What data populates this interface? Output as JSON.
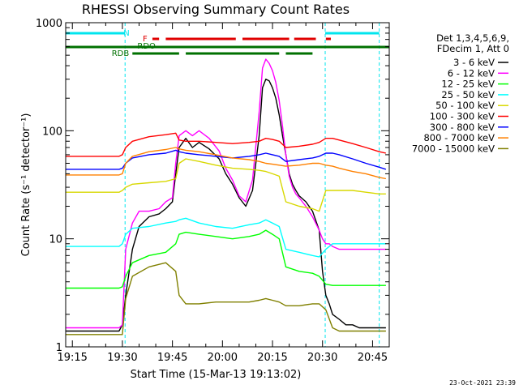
{
  "chart_data": {
    "type": "line",
    "title": "RHESSI Observing Summary Count Rates",
    "xlabel": "Start Time (15-Mar-13 19:13:02)",
    "ylabel": "Count Rate (s⁻¹ detector⁻¹)",
    "x_unit": "minutes after 19:13:02",
    "xlim": [
      0,
      97
    ],
    "ylim": [
      1,
      1000
    ],
    "yscale": "log",
    "x_ticks": [
      {
        "label": "19:15",
        "value": 2
      },
      {
        "label": "19:30",
        "value": 17
      },
      {
        "label": "19:45",
        "value": 32
      },
      {
        "label": "20:00",
        "value": 47
      },
      {
        "label": "20:15",
        "value": 62
      },
      {
        "label": "20:30",
        "value": 77
      },
      {
        "label": "20:45",
        "value": 92
      }
    ],
    "y_ticks": [
      {
        "label": "1",
        "value": 1
      },
      {
        "label": "10",
        "value": 10
      },
      {
        "label": "100",
        "value": 100
      },
      {
        "label": "1000",
        "value": 1000
      }
    ],
    "legend_header": [
      "Det 1,3,4,5,6,9,",
      "FDecim 1, Att 0"
    ],
    "legend_position": "right",
    "footer": "23-Oct-2021 23:39",
    "night_intervals": [
      {
        "start": 0,
        "end": 17.8
      },
      {
        "start": 77.8,
        "end": 94
      }
    ],
    "flags": [
      {
        "label": "N",
        "color": "#00e5ee",
        "segments": [
          [
            0,
            17.8
          ],
          [
            77.8,
            94
          ]
        ]
      },
      {
        "label": "F",
        "color": "#e00000",
        "segments": [
          [
            26,
            28
          ],
          [
            30,
            51
          ],
          [
            53,
            67
          ],
          [
            68.5,
            75
          ],
          [
            78,
            79.5
          ]
        ]
      },
      {
        "label": "RDO",
        "color": "#007000",
        "segments": [
          [
            0,
            97
          ]
        ]
      },
      {
        "label": "RDB",
        "color": "#007000",
        "segments": [
          [
            20,
            34
          ],
          [
            36,
            64
          ],
          [
            66,
            74
          ]
        ]
      }
    ],
    "series": [
      {
        "name": "3 - 6 keV",
        "color": "#000000",
        "x": [
          0,
          16,
          17,
          18,
          20,
          22,
          25,
          28,
          30,
          32,
          33,
          34,
          36,
          38,
          40,
          43,
          46,
          48,
          50,
          52,
          54,
          56,
          58,
          59,
          60,
          61,
          62,
          63,
          64,
          65,
          66,
          67,
          68,
          69,
          70,
          72,
          74,
          76,
          77,
          78,
          79,
          80,
          82,
          84,
          86,
          88,
          90,
          92,
          94,
          96
        ],
        "values": [
          1.4,
          1.4,
          1.6,
          3,
          8,
          13,
          16,
          17,
          19,
          22,
          40,
          70,
          85,
          70,
          78,
          68,
          55,
          40,
          32,
          24,
          20,
          28,
          90,
          250,
          300,
          290,
          250,
          200,
          140,
          90,
          60,
          40,
          32,
          28,
          25,
          22,
          18,
          12,
          5,
          3,
          2.5,
          2,
          1.8,
          1.6,
          1.6,
          1.5,
          1.5,
          1.5,
          1.5,
          1.5
        ]
      },
      {
        "name": "6 - 12 keV",
        "color": "#ff00ff",
        "x": [
          0,
          16,
          17,
          18,
          20,
          22,
          25,
          28,
          30,
          32,
          33,
          34,
          36,
          38,
          40,
          43,
          46,
          48,
          50,
          52,
          54,
          56,
          58,
          59,
          60,
          61,
          62,
          63,
          64,
          65,
          66,
          67,
          68,
          69,
          70,
          72,
          74,
          76,
          77,
          78,
          79,
          80,
          82,
          84,
          86,
          88,
          90,
          92,
          94,
          96
        ],
        "values": [
          1.5,
          1.5,
          1.6,
          8,
          14,
          18,
          18,
          19,
          22,
          24,
          50,
          90,
          100,
          90,
          100,
          85,
          65,
          45,
          35,
          25,
          22,
          35,
          150,
          380,
          460,
          420,
          360,
          280,
          190,
          110,
          60,
          38,
          30,
          26,
          24,
          20,
          16,
          12,
          10,
          9,
          9,
          8.5,
          8,
          8,
          8,
          8,
          8,
          8,
          8,
          8
        ]
      },
      {
        "name": "12 - 25 keV",
        "color": "#00ff00",
        "x": [
          0,
          16,
          17,
          18,
          20,
          25,
          30,
          33,
          34,
          36,
          40,
          45,
          50,
          55,
          58,
          60,
          62,
          64,
          66,
          70,
          74,
          76,
          78,
          80,
          82,
          86,
          90,
          94,
          96
        ],
        "values": [
          3.5,
          3.5,
          3.6,
          4.5,
          6,
          7,
          7.5,
          9,
          11,
          11.5,
          11,
          10.5,
          10,
          10.5,
          11,
          12,
          11,
          10,
          5.5,
          5,
          4.8,
          4.5,
          3.8,
          3.7,
          3.7,
          3.7,
          3.7,
          3.7,
          3.7
        ]
      },
      {
        "name": "25 - 50 keV",
        "color": "#00ffff",
        "x": [
          0,
          16,
          17,
          18,
          20,
          25,
          30,
          33,
          34,
          36,
          40,
          45,
          50,
          55,
          58,
          60,
          62,
          64,
          66,
          70,
          74,
          76,
          78,
          80,
          82,
          86,
          90,
          94,
          96
        ],
        "values": [
          8.5,
          8.5,
          9,
          11,
          12.5,
          13,
          14,
          14.5,
          15,
          15.5,
          14,
          13,
          12.5,
          13.5,
          14,
          15,
          14,
          13,
          8,
          7.5,
          7,
          6.8,
          8,
          9,
          9,
          9,
          9,
          9,
          9
        ]
      },
      {
        "name": "50 - 100 keV",
        "color": "#d8d800",
        "x": [
          0,
          16,
          17,
          18,
          20,
          25,
          30,
          33,
          34,
          36,
          40,
          45,
          50,
          55,
          58,
          60,
          62,
          64,
          66,
          70,
          74,
          76,
          78,
          80,
          82,
          86,
          90,
          94,
          96
        ],
        "values": [
          27,
          27,
          28,
          30,
          32,
          33,
          34,
          36,
          50,
          55,
          52,
          48,
          45,
          44,
          43,
          42,
          40,
          38,
          22,
          20,
          19,
          18,
          28,
          28,
          28,
          28,
          27,
          26,
          26
        ]
      },
      {
        "name": "100 - 300 keV",
        "color": "#ff0000",
        "x": [
          0,
          16,
          17,
          18,
          20,
          25,
          30,
          33,
          34,
          36,
          40,
          45,
          50,
          55,
          58,
          60,
          62,
          64,
          66,
          70,
          74,
          76,
          78,
          80,
          82,
          86,
          90,
          94,
          96
        ],
        "values": [
          58,
          58,
          60,
          70,
          80,
          88,
          92,
          95,
          82,
          80,
          80,
          78,
          76,
          78,
          80,
          85,
          83,
          80,
          70,
          72,
          75,
          78,
          85,
          85,
          82,
          76,
          70,
          64,
          62
        ]
      },
      {
        "name": "300 - 800 keV",
        "color": "#0000ff",
        "x": [
          0,
          16,
          17,
          18,
          20,
          25,
          30,
          33,
          34,
          36,
          40,
          45,
          50,
          55,
          58,
          60,
          62,
          64,
          66,
          70,
          74,
          76,
          78,
          80,
          82,
          86,
          90,
          94,
          96
        ],
        "values": [
          44,
          44,
          45,
          50,
          56,
          60,
          62,
          66,
          64,
          62,
          60,
          58,
          56,
          58,
          60,
          62,
          60,
          58,
          52,
          54,
          56,
          58,
          62,
          62,
          60,
          55,
          50,
          46,
          44
        ]
      },
      {
        "name": "800 - 7000 keV",
        "color": "#ff8000",
        "x": [
          0,
          16,
          17,
          18,
          20,
          25,
          30,
          33,
          34,
          36,
          40,
          45,
          50,
          55,
          58,
          60,
          62,
          64,
          66,
          70,
          74,
          76,
          78,
          80,
          82,
          86,
          90,
          94,
          96
        ],
        "values": [
          39,
          39,
          40,
          50,
          58,
          64,
          67,
          70,
          68,
          66,
          64,
          60,
          56,
          54,
          52,
          50,
          49,
          48,
          47,
          48,
          50,
          50,
          48,
          47,
          45,
          42,
          40,
          37,
          36
        ]
      },
      {
        "name": "7000 - 15000 keV",
        "color": "#808000",
        "x": [
          0,
          16,
          17,
          18,
          20,
          25,
          30,
          33,
          34,
          36,
          40,
          45,
          50,
          55,
          58,
          60,
          62,
          64,
          66,
          70,
          74,
          76,
          78,
          80,
          82,
          86,
          90,
          94,
          96
        ],
        "values": [
          1.3,
          1.3,
          1.3,
          2.8,
          4.5,
          5.5,
          6,
          5,
          3,
          2.5,
          2.5,
          2.6,
          2.6,
          2.6,
          2.7,
          2.8,
          2.7,
          2.6,
          2.4,
          2.4,
          2.5,
          2.5,
          2.2,
          1.5,
          1.4,
          1.4,
          1.4,
          1.4,
          1.4
        ]
      }
    ]
  }
}
